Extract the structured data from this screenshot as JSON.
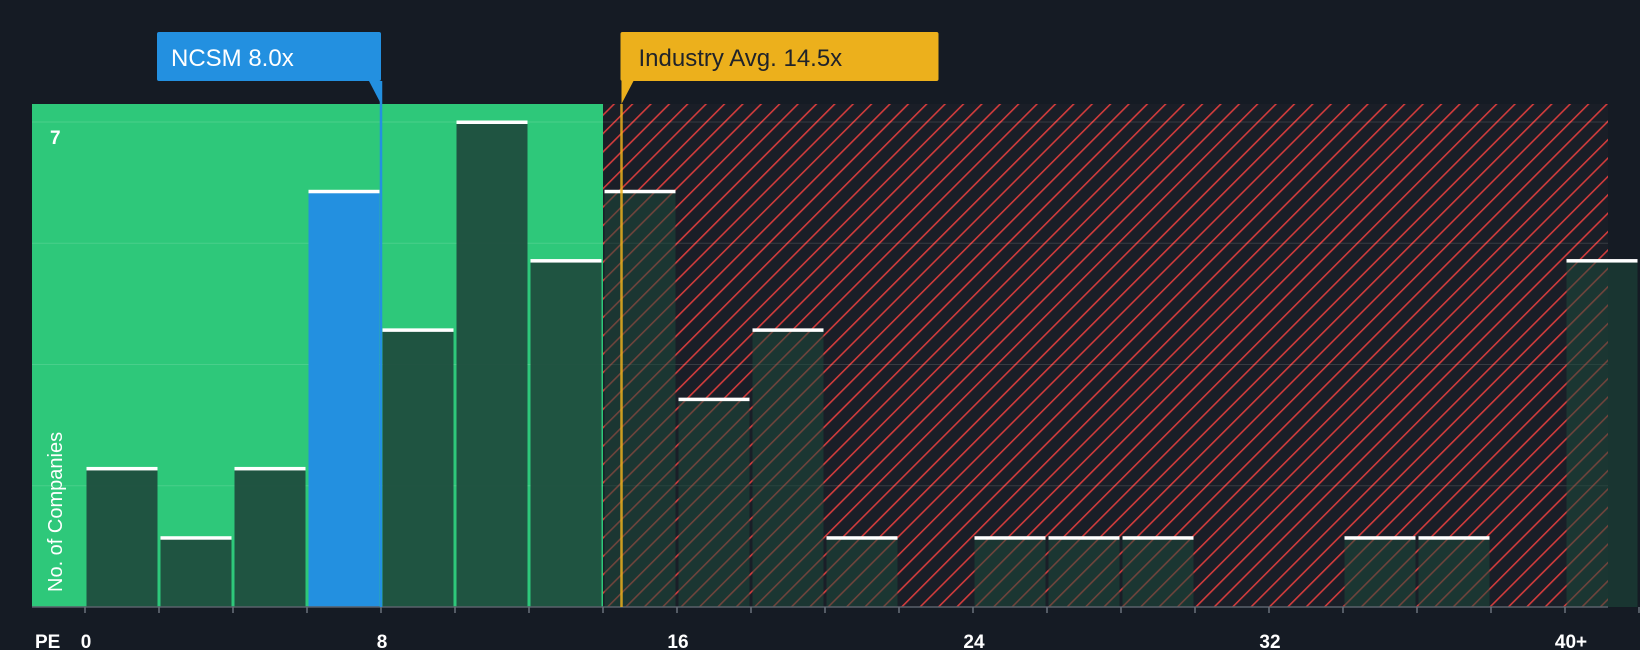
{
  "chart_data": {
    "type": "bar",
    "xlabel": "PE",
    "ylabel": "No. of Companies",
    "x_ticks": [
      "0",
      "8",
      "16",
      "24",
      "32",
      "40+"
    ],
    "y_tick_label": "7",
    "ylim": [
      0,
      7
    ],
    "bins": [
      {
        "start": 0,
        "end": 2,
        "value": 2
      },
      {
        "start": 2,
        "end": 4,
        "value": 1
      },
      {
        "start": 4,
        "end": 6,
        "value": 2
      },
      {
        "start": 6,
        "end": 8,
        "value": 6,
        "highlight": true
      },
      {
        "start": 8,
        "end": 10,
        "value": 4
      },
      {
        "start": 10,
        "end": 12,
        "value": 7
      },
      {
        "start": 12,
        "end": 14,
        "value": 5
      },
      {
        "start": 14,
        "end": 16,
        "value": 6
      },
      {
        "start": 16,
        "end": 18,
        "value": 3
      },
      {
        "start": 18,
        "end": 20,
        "value": 4
      },
      {
        "start": 20,
        "end": 22,
        "value": 1
      },
      {
        "start": 22,
        "end": 24,
        "value": 0
      },
      {
        "start": 24,
        "end": 26,
        "value": 1
      },
      {
        "start": 26,
        "end": 28,
        "value": 1
      },
      {
        "start": 28,
        "end": 30,
        "value": 1
      },
      {
        "start": 30,
        "end": 32,
        "value": 0
      },
      {
        "start": 32,
        "end": 34,
        "value": 0
      },
      {
        "start": 34,
        "end": 36,
        "value": 1
      },
      {
        "start": 36,
        "end": 38,
        "value": 1
      },
      {
        "start": 38,
        "end": 40,
        "value": 0
      },
      {
        "start": 40,
        "end": 42,
        "value": 5
      }
    ],
    "company": {
      "label": "NCSM 8.0x",
      "value": 8.0
    },
    "industry": {
      "label": "Industry Avg. 14.5x",
      "value": 14.5
    },
    "colors": {
      "background": "#151b24",
      "undervalued_zone": "#2ec87a",
      "overvalued_hatch": "#d23c3c",
      "bar": "#1e4a3c",
      "highlight_bar": "#2390e0",
      "bar_top": "#ffffff",
      "company_callout": "#2390e0",
      "industry_callout": "#ecb01c"
    }
  }
}
